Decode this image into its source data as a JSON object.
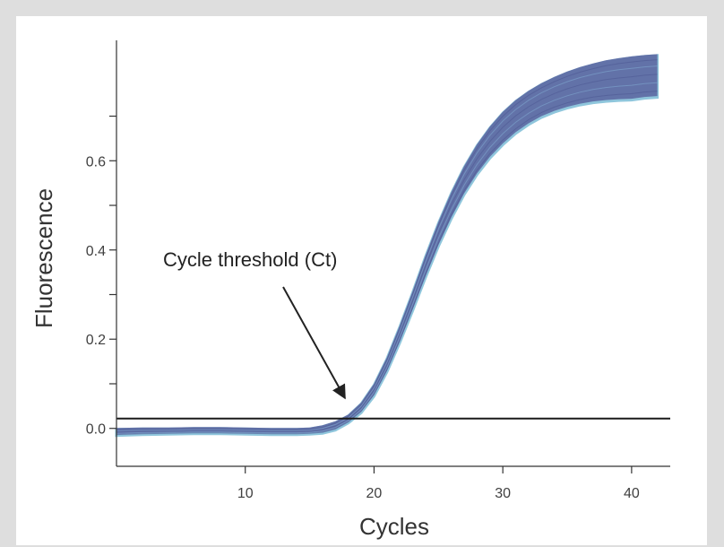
{
  "chart_data": {
    "type": "line",
    "title": "",
    "xlabel": "Cycles",
    "ylabel": "Fluorescence",
    "xlim": [
      0,
      43
    ],
    "ylim": [
      -0.085,
      0.88
    ],
    "x_ticks": [
      10,
      20,
      30,
      40
    ],
    "x_tick_labels": [
      "10",
      "20",
      "30",
      "40"
    ],
    "y_ticks": [
      0.0,
      0.1,
      0.2,
      0.3,
      0.4,
      0.5,
      0.6,
      0.7
    ],
    "y_tick_labels": [
      "0.0",
      "",
      "0.2",
      "",
      "0.4",
      "",
      "0.6",
      ""
    ],
    "grid": false,
    "legend": "none",
    "threshold": {
      "y": 0.022,
      "label": "Cycle threshold (Ct)",
      "arrow_target": [
        18,
        0.06
      ]
    },
    "curve_band": {
      "description_color_fill": "#5e6aa3",
      "description_color_edge": "#8fc6dc",
      "x": [
        0,
        2,
        4,
        6,
        8,
        10,
        12,
        14,
        15,
        16,
        17,
        18,
        19,
        20,
        21,
        22,
        23,
        24,
        25,
        26,
        27,
        28,
        29,
        30,
        31,
        32,
        33,
        34,
        35,
        36,
        37,
        38,
        39,
        40,
        41,
        42
      ],
      "upper": [
        -0.002,
        -0.001,
        -0.001,
        0.0,
        0.0,
        -0.001,
        -0.002,
        -0.002,
        -0.001,
        0.004,
        0.013,
        0.028,
        0.055,
        0.097,
        0.156,
        0.228,
        0.305,
        0.385,
        0.46,
        0.527,
        0.585,
        0.634,
        0.674,
        0.707,
        0.733,
        0.754,
        0.771,
        0.785,
        0.797,
        0.807,
        0.815,
        0.822,
        0.827,
        0.831,
        0.834,
        0.836
      ],
      "lower": [
        -0.016,
        -0.014,
        -0.013,
        -0.012,
        -0.012,
        -0.013,
        -0.014,
        -0.014,
        -0.013,
        -0.011,
        -0.004,
        0.012,
        0.035,
        0.072,
        0.126,
        0.192,
        0.264,
        0.338,
        0.408,
        0.47,
        0.524,
        0.569,
        0.606,
        0.636,
        0.661,
        0.681,
        0.697,
        0.709,
        0.718,
        0.725,
        0.73,
        0.733,
        0.735,
        0.736,
        0.74,
        0.742
      ]
    }
  },
  "colors": {
    "band_fill": "#5e6aa3",
    "band_edge": "#8fc6dc",
    "axis": "#333333",
    "threshold_line": "#1a1a1a",
    "arrow": "#222222"
  }
}
